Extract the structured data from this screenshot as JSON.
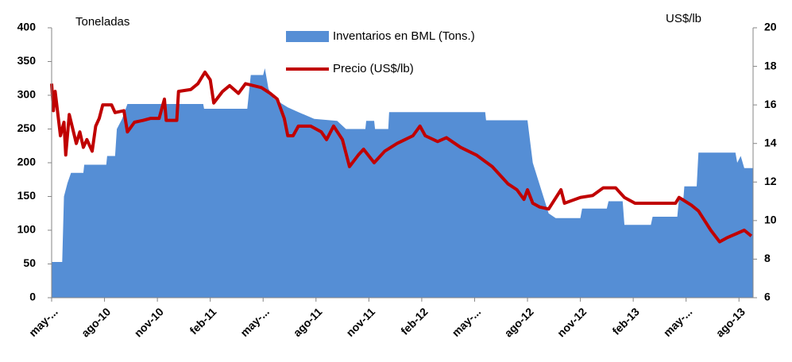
{
  "chart_data": {
    "type": "combo",
    "annotations": [
      "Toneladas",
      "US$/lb"
    ],
    "xlim": [
      0,
      39.8
    ],
    "xticks": [
      {
        "value": 0,
        "label": "may-..."
      },
      {
        "value": 3,
        "label": "ago-10"
      },
      {
        "value": 6,
        "label": "nov-10"
      },
      {
        "value": 9,
        "label": "feb-11"
      },
      {
        "value": 12,
        "label": "may-..."
      },
      {
        "value": 15,
        "label": "ago-11"
      },
      {
        "value": 18,
        "label": "nov-11"
      },
      {
        "value": 21,
        "label": "feb-12"
      },
      {
        "value": 24,
        "label": "may-..."
      },
      {
        "value": 27,
        "label": "ago-12"
      },
      {
        "value": 30,
        "label": "nov-12"
      },
      {
        "value": 33,
        "label": "feb-13"
      },
      {
        "value": 36,
        "label": "may-..."
      },
      {
        "value": 39,
        "label": "ago-13"
      }
    ],
    "ylim": [
      0,
      400
    ],
    "yticks": [
      0,
      50,
      100,
      150,
      200,
      250,
      300,
      350,
      400
    ],
    "y2lim": [
      6,
      20
    ],
    "y2ticks": [
      6,
      8,
      10,
      12,
      14,
      16,
      18,
      20
    ],
    "series": [
      {
        "name": "Inventarios en BML (Tons.)",
        "type": "area",
        "color": "#558ed5",
        "x": [
          0,
          0.6,
          0.7,
          0.9,
          1.1,
          1.8,
          1.85,
          3.1,
          3.15,
          3.6,
          3.7,
          4.0,
          4.3,
          8.6,
          8.65,
          11.1,
          11.3,
          12.0,
          12.1,
          12.3,
          12.6,
          13.4,
          14.0,
          14.9,
          16.2,
          16.7,
          17.8,
          17.85,
          18.3,
          18.35,
          19.1,
          19.15,
          20.1,
          24.6,
          24.65,
          27.0,
          27.3,
          27.9,
          28.2,
          28.6,
          30.0,
          30.1,
          31.5,
          31.6,
          32.4,
          32.5,
          34.0,
          34.1,
          35.5,
          35.6,
          35.85,
          35.9,
          36.6,
          36.7,
          38.8,
          38.9,
          39.1,
          39.3,
          39.8
        ],
        "values": [
          53,
          53,
          150,
          170,
          185,
          185,
          197,
          197,
          210,
          210,
          250,
          265,
          287,
          287,
          280,
          280,
          330,
          330,
          340,
          310,
          295,
          282,
          275,
          265,
          262,
          250,
          250,
          262,
          262,
          250,
          250,
          275,
          275,
          275,
          263,
          263,
          200,
          150,
          125,
          118,
          118,
          132,
          132,
          143,
          143,
          108,
          108,
          120,
          120,
          148,
          148,
          165,
          165,
          215,
          215,
          200,
          210,
          192,
          192
        ]
      },
      {
        "name": "Precio (US$/lb)",
        "type": "line",
        "axis": "y2",
        "color": "#c00000",
        "x": [
          0,
          0.1,
          0.2,
          0.5,
          0.7,
          0.8,
          1.0,
          1.4,
          1.6,
          1.8,
          2.0,
          2.3,
          2.5,
          2.7,
          2.9,
          3.4,
          3.6,
          4.1,
          4.3,
          4.7,
          5.2,
          5.6,
          6.1,
          6.4,
          6.5,
          7.1,
          7.2,
          7.9,
          8.3,
          8.7,
          9.0,
          9.2,
          9.7,
          10.1,
          10.6,
          11.0,
          11.9,
          12.4,
          12.8,
          13.2,
          13.4,
          13.7,
          14.0,
          14.7,
          15.3,
          15.6,
          16.0,
          16.5,
          16.9,
          17.4,
          17.7,
          18.3,
          18.9,
          19.6,
          20.5,
          20.9,
          21.2,
          21.9,
          22.4,
          23.2,
          24.1,
          25.0,
          25.9,
          26.4,
          26.8,
          27.0,
          27.3,
          27.7,
          28.2,
          28.9,
          29.1,
          30.0,
          30.7,
          31.3,
          32.0,
          32.5,
          33.1,
          34.0,
          35.4,
          35.6,
          36.3,
          36.7,
          37.4,
          37.9,
          38.3,
          38.8,
          39.3,
          39.7
        ],
        "values": [
          17.1,
          15.7,
          16.7,
          14.4,
          15.1,
          13.4,
          15.5,
          14.0,
          14.6,
          13.8,
          14.2,
          13.6,
          14.9,
          15.3,
          16.0,
          16.0,
          15.6,
          15.7,
          14.6,
          15.1,
          15.2,
          15.3,
          15.3,
          16.3,
          15.2,
          15.2,
          16.7,
          16.8,
          17.1,
          17.7,
          17.3,
          16.1,
          16.7,
          17.0,
          16.6,
          17.1,
          16.9,
          16.6,
          16.3,
          15.3,
          14.4,
          14.4,
          14.9,
          14.9,
          14.6,
          14.2,
          14.9,
          14.2,
          12.8,
          13.4,
          13.7,
          13.0,
          13.6,
          14.0,
          14.4,
          14.9,
          14.4,
          14.1,
          14.3,
          13.8,
          13.4,
          12.8,
          11.9,
          11.6,
          11.1,
          11.6,
          10.9,
          10.7,
          10.6,
          11.6,
          10.9,
          11.2,
          11.3,
          11.7,
          11.7,
          11.2,
          10.9,
          10.9,
          10.9,
          11.2,
          10.8,
          10.5,
          9.5,
          8.9,
          9.1,
          9.3,
          9.5,
          9.2
        ]
      }
    ]
  }
}
